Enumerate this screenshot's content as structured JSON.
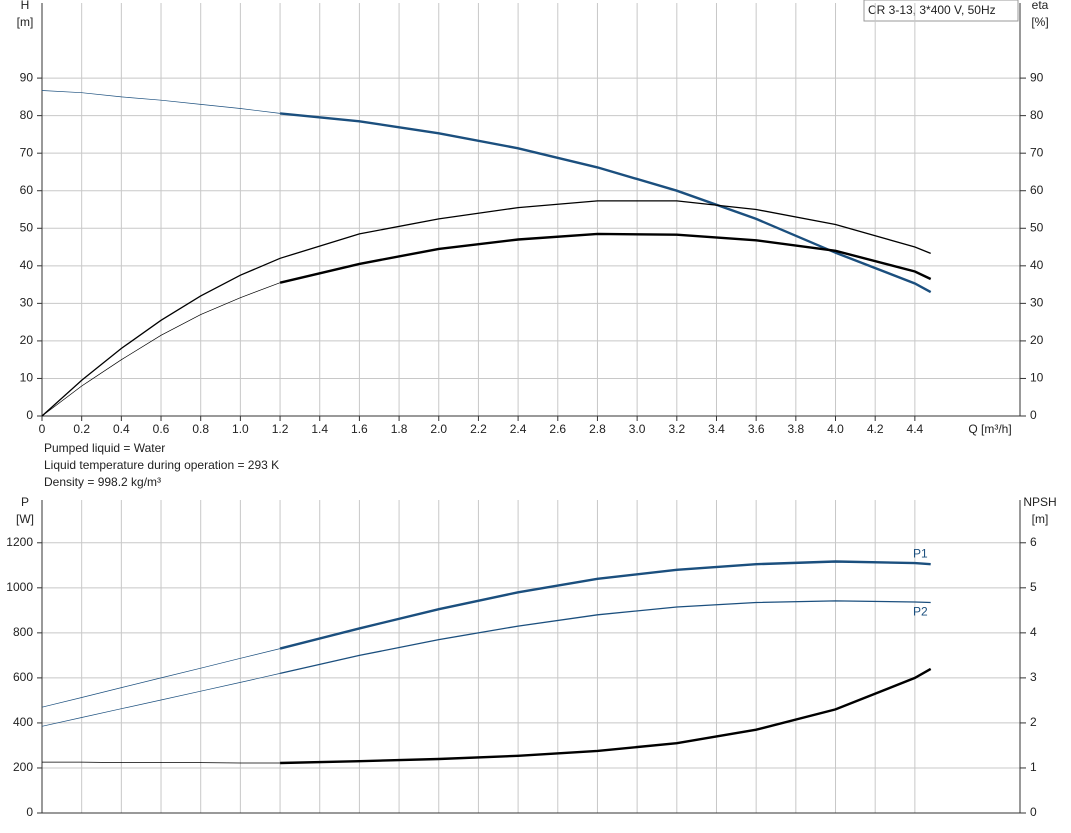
{
  "chart_data": [
    {
      "type": "line",
      "ylabel": "H",
      "yunit": "[m]",
      "y2label": "eta",
      "y2unit": "[%]",
      "xlabel": "Q [m³/h]",
      "annotation": "CR 3-13, 3*400 V, 50Hz",
      "notes": [
        "Pumped liquid = Water",
        "Liquid temperature during operation = 293 K",
        "Density = 998.2 kg/m³"
      ],
      "xlim": [
        0,
        4.93
      ],
      "xticks": [
        0,
        0.2,
        0.4,
        0.6,
        0.8,
        {
          "value": 1,
          "label": "1.0"
        },
        1.2,
        1.4,
        1.6,
        1.8,
        {
          "value": 2,
          "label": "2.0"
        },
        2.2,
        2.4,
        2.6,
        2.8,
        {
          "value": 3,
          "label": "3.0"
        },
        3.2,
        3.4,
        3.6,
        3.8,
        {
          "value": 4,
          "label": "4.0"
        },
        4.2,
        4.4
      ],
      "ylim": [
        0,
        110
      ],
      "yticks": [
        0,
        10,
        20,
        30,
        40,
        50,
        60,
        70,
        80,
        90
      ],
      "y2lim": [
        0,
        110
      ],
      "y2ticks": [
        0,
        10,
        20,
        30,
        40,
        50,
        60,
        70,
        80,
        90
      ],
      "grid": true,
      "x": [
        0,
        0.2,
        0.4,
        0.6,
        0.8,
        1.0,
        1.2,
        1.6,
        2.0,
        2.4,
        2.8,
        3.2,
        3.6,
        4.0,
        4.4,
        4.48
      ],
      "series": [
        {
          "color": "#1b4f7e",
          "style": "thin",
          "values": [
            86.7,
            86.1,
            85.0,
            84.1,
            83.0,
            81.9,
            80.6,
            null,
            null,
            null,
            null,
            null,
            null,
            null,
            null,
            null
          ]
        },
        {
          "color": "#1b4f7e",
          "style": "thick",
          "values": [
            null,
            null,
            null,
            null,
            null,
            null,
            80.6,
            78.5,
            75.3,
            71.3,
            66.2,
            60.0,
            52.5,
            43.5,
            35.3,
            33.0
          ]
        },
        {
          "color": "#000000",
          "style": "medium",
          "axis": "y2",
          "values": [
            0,
            9.5,
            18,
            25.5,
            32,
            37.5,
            42,
            48.5,
            52.5,
            55.5,
            57.3,
            57.3,
            55,
            51,
            45,
            43.3
          ]
        },
        {
          "color": "#000000",
          "style": "thin",
          "axis": "y2",
          "values": [
            0,
            8,
            15,
            21.5,
            27,
            31.5,
            35.5,
            null,
            null,
            null,
            null,
            null,
            null,
            null,
            null,
            null
          ]
        },
        {
          "color": "#000000",
          "style": "thick",
          "axis": "y2",
          "values": [
            null,
            null,
            null,
            null,
            null,
            null,
            35.5,
            40.5,
            44.5,
            47,
            48.5,
            48.3,
            46.8,
            44,
            38.5,
            36.5
          ]
        }
      ]
    },
    {
      "type": "line",
      "ylabel": "P",
      "yunit": "[W]",
      "y2label": "NPSH",
      "y2unit": "[m]",
      "xlim": [
        0,
        4.93
      ],
      "ylim": [
        0,
        1390
      ],
      "yticks": [
        0,
        200,
        400,
        600,
        800,
        1000,
        1200
      ],
      "y2lim": [
        0,
        6.95
      ],
      "y2ticks": [
        0,
        1,
        2,
        3,
        4,
        5,
        6
      ],
      "grid": true,
      "x": [
        0,
        0.2,
        0.4,
        0.6,
        0.8,
        1.0,
        1.2,
        1.6,
        2.0,
        2.4,
        2.8,
        3.2,
        3.6,
        4.0,
        4.4,
        4.48
      ],
      "series": [
        {
          "color": "#1b4f7e",
          "style": "thin",
          "values": [
            470,
            513,
            557,
            600,
            643,
            687,
            730,
            null,
            null,
            null,
            null,
            null,
            null,
            null,
            null,
            null
          ]
        },
        {
          "name": "P1",
          "color": "#1b4f7e",
          "style": "thick",
          "values": [
            null,
            null,
            null,
            null,
            null,
            null,
            730,
            820,
            905,
            980,
            1040,
            1080,
            1105,
            1117,
            1110,
            1105
          ]
        },
        {
          "color": "#1b4f7e",
          "style": "thin",
          "values": [
            385,
            424,
            463,
            502,
            541,
            580,
            620,
            null,
            null,
            null,
            null,
            null,
            null,
            null,
            null,
            null
          ]
        },
        {
          "name": "P2",
          "color": "#1b4f7e",
          "style": "medium",
          "values": [
            null,
            null,
            null,
            null,
            null,
            null,
            620,
            700,
            770,
            830,
            880,
            915,
            935,
            942,
            937,
            935
          ]
        },
        {
          "color": "#000000",
          "style": "thin",
          "axis": "y2",
          "values": [
            1.13,
            1.13,
            1.12,
            1.12,
            1.12,
            1.11,
            1.11,
            null,
            null,
            null,
            null,
            null,
            null,
            null,
            null,
            null
          ]
        },
        {
          "color": "#000000",
          "style": "thick",
          "axis": "y2",
          "values": [
            null,
            null,
            null,
            null,
            null,
            null,
            1.11,
            1.15,
            1.2,
            1.27,
            1.38,
            1.55,
            1.85,
            2.3,
            3.0,
            3.2
          ]
        }
      ]
    }
  ]
}
